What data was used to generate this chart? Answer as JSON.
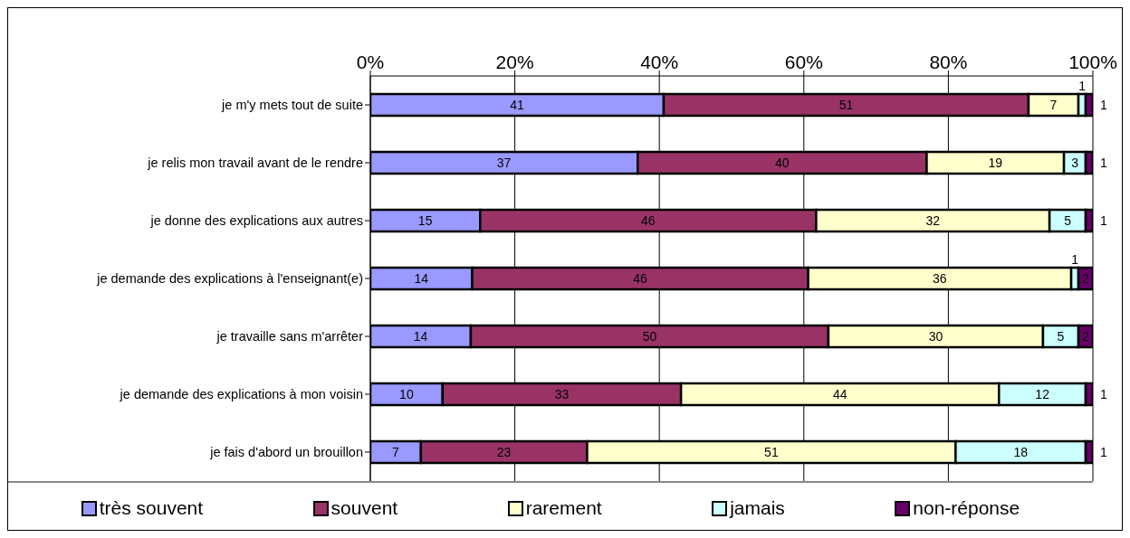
{
  "chart_data": {
    "type": "bar",
    "orientation": "horizontal",
    "stacked": true,
    "categories": [
      "je m'y mets tout de suite",
      "je relis mon travail avant de le rendre",
      "je donne des explications aux autres",
      "je demande des explications à l'enseignant(e)",
      "je travaille sans m'arrêter",
      "je demande des explications à mon voisin",
      "je fais d'abord un brouillon"
    ],
    "series": [
      {
        "name": "très souvent",
        "color": "#9999ff",
        "values": [
          40.6,
          37,
          15.2,
          14.1,
          13.9,
          10,
          7
        ],
        "value_labels": [
          "41",
          "37",
          "15",
          "14",
          "14",
          "10",
          "7"
        ]
      },
      {
        "name": "souvent",
        "color": "#993366",
        "values": [
          50.5,
          40,
          46.5,
          46.5,
          49.5,
          33,
          23
        ],
        "value_labels": [
          "51",
          "40",
          "46",
          "46",
          "50",
          "33",
          "23"
        ]
      },
      {
        "name": "rarement",
        "color": "#ffffcc",
        "values": [
          6.9,
          19,
          32.3,
          36.4,
          29.7,
          44,
          51
        ],
        "value_labels": [
          "7",
          "19",
          "32",
          "36",
          "30",
          "44",
          "51"
        ]
      },
      {
        "name": "jamais",
        "color": "#ccffff",
        "values": [
          1,
          3,
          5,
          1,
          4.9,
          12,
          18
        ],
        "value_labels": [
          "1",
          "3",
          "5",
          "1",
          "5",
          "12",
          "18"
        ]
      },
      {
        "name": "non-réponse",
        "color": "#660066",
        "values": [
          1,
          1,
          1,
          2,
          2,
          1,
          1
        ],
        "value_labels": [
          "1",
          "1",
          "1",
          "2",
          "2",
          "1",
          "1"
        ]
      }
    ],
    "xlim": [
      0,
      100
    ],
    "xticks": [
      {
        "value": 0,
        "label": "0%"
      },
      {
        "value": 20,
        "label": "20%"
      },
      {
        "value": 40,
        "label": "40%"
      },
      {
        "value": 60,
        "label": "60%"
      },
      {
        "value": 80,
        "label": "80%"
      },
      {
        "value": 100,
        "label": "100%"
      }
    ],
    "grid": "x",
    "legend": "bottom"
  }
}
